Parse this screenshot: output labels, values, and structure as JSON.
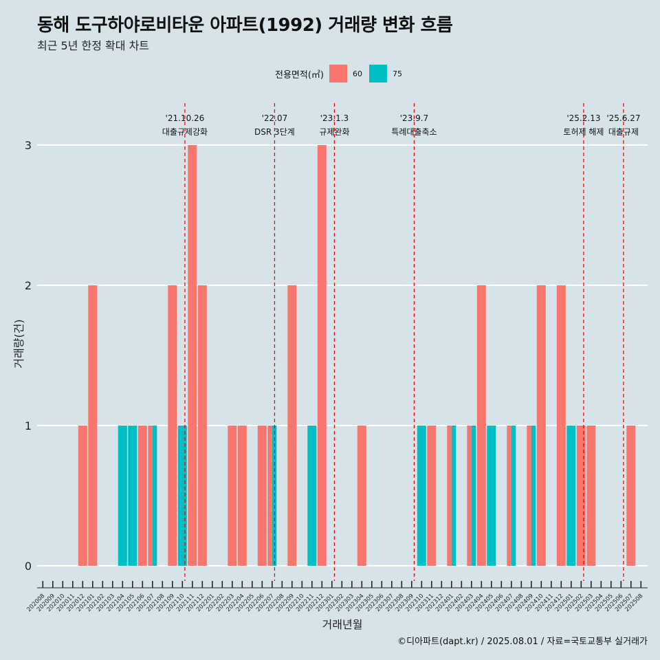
{
  "title": "동해 도구하야로비타운 아파트(1992) 거래량 변화 흐름",
  "subtitle": "최근 5년 한정 확대 차트",
  "caption": "©디아파트(dapt.kr) / 2025.08.01 / 자료=국토교통부 실거래가",
  "legend": {
    "title": "전용면적(㎡)",
    "items": [
      {
        "label": "60",
        "color": "#F8766D"
      },
      {
        "label": "75",
        "color": "#00BFC4"
      }
    ]
  },
  "chart_data": {
    "type": "bar",
    "xlabel": "거래년월",
    "ylabel": "거래량(건)",
    "ylim": [
      0,
      3
    ],
    "yticks": [
      0,
      1,
      2,
      3
    ],
    "grid": true,
    "legend_position": "top",
    "categories": [
      "202008",
      "202009",
      "202010",
      "202011",
      "202012",
      "202101",
      "202102",
      "202103",
      "202104",
      "202105",
      "202106",
      "202107",
      "202108",
      "202109",
      "202110",
      "202111",
      "202112",
      "202201",
      "202202",
      "202203",
      "202204",
      "202205",
      "202206",
      "202207",
      "202208",
      "202209",
      "202210",
      "202211",
      "202212",
      "202301",
      "202302",
      "202303",
      "202304",
      "202305",
      "202306",
      "202307",
      "202308",
      "202309",
      "202310",
      "202311",
      "202312",
      "202401",
      "202402",
      "202403",
      "202404",
      "202405",
      "202406",
      "202407",
      "202408",
      "202409",
      "202410",
      "202411",
      "202412",
      "202501",
      "202502",
      "202503",
      "202504",
      "202505",
      "202506",
      "202507",
      "202508"
    ],
    "series": [
      {
        "name": "60",
        "color": "#F8766D",
        "values": [
          0,
          0,
          0,
          0,
          1,
          2,
          0,
          0,
          0,
          0,
          1,
          1,
          0,
          2,
          0,
          3,
          2,
          0,
          0,
          1,
          1,
          0,
          1,
          1,
          0,
          2,
          0,
          0,
          3,
          0,
          0,
          0,
          1,
          0,
          0,
          0,
          0,
          0,
          0,
          1,
          0,
          1,
          0,
          1,
          2,
          0,
          0,
          1,
          0,
          1,
          2,
          0,
          2,
          0,
          1,
          1,
          0,
          0,
          0,
          1,
          0
        ]
      },
      {
        "name": "75",
        "color": "#00BFC4",
        "values": [
          0,
          0,
          0,
          0,
          0,
          0,
          0,
          0,
          1,
          1,
          0,
          1,
          0,
          0,
          1,
          0,
          0,
          0,
          0,
          0,
          0,
          0,
          0,
          1,
          0,
          0,
          0,
          1,
          0,
          0,
          0,
          0,
          0,
          0,
          0,
          0,
          0,
          0,
          1,
          0,
          0,
          1,
          0,
          1,
          0,
          1,
          0,
          1,
          0,
          1,
          0,
          0,
          0,
          1,
          0,
          0,
          0,
          0,
          0,
          0,
          0
        ]
      }
    ],
    "events": [
      {
        "month": "202110",
        "date": "'21.10.26",
        "label": "대출규제강화"
      },
      {
        "month": "202207",
        "date": "'22.07",
        "label": "DSR 3단계"
      },
      {
        "month": "202301",
        "date": "'23.1.3",
        "label": "규제완화"
      },
      {
        "month": "202309",
        "date": "'23.9.7",
        "label": "특례대출축소"
      },
      {
        "month": "202502",
        "date": "'25.2.13",
        "label": "토허제 해제"
      },
      {
        "month": "202506",
        "date": "'25.6.27",
        "label": "대출규제"
      }
    ]
  }
}
